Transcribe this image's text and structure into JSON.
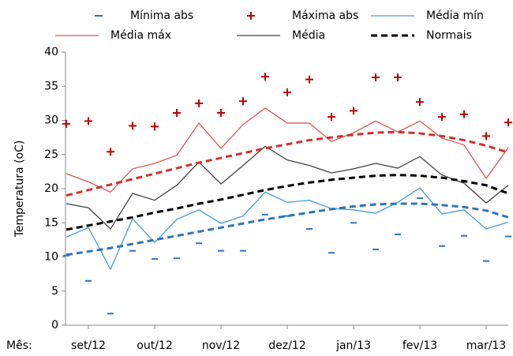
{
  "chart_data": {
    "type": "line",
    "y_label": "Temperatura (oC)",
    "x_label": "Mês:",
    "x": [
      0,
      1,
      2,
      3,
      4,
      5,
      6,
      7,
      8,
      9,
      10,
      11,
      12,
      13,
      14,
      15,
      16,
      17,
      18,
      19,
      20
    ],
    "xlim": [
      0,
      20
    ],
    "xticks": [
      {
        "value": 1,
        "label": "set/12"
      },
      {
        "value": 4,
        "label": "out/12"
      },
      {
        "value": 7,
        "label": "nov/12"
      },
      {
        "value": 10,
        "label": "dez/12"
      },
      {
        "value": 13,
        "label": "jan/13"
      },
      {
        "value": 16,
        "label": "fev/13"
      },
      {
        "value": 19,
        "label": "mar/13"
      }
    ],
    "ylim": [
      0,
      40
    ],
    "yticks": [
      0,
      5,
      10,
      15,
      20,
      25,
      30,
      35,
      40
    ],
    "series": [
      {
        "name": "Mínima abs",
        "color": "#2e75b6",
        "marker": "dash",
        "values": [
          10.2,
          6.5,
          1.7,
          10.9,
          9.7,
          9.8,
          12.0,
          10.9,
          10.9,
          16.2,
          16.0,
          14.1,
          10.6,
          15.0,
          11.1,
          13.3,
          18.6,
          11.6,
          13.1,
          9.4,
          13.0
        ]
      },
      {
        "name": "Máxima abs",
        "color": "#c00000",
        "marker": "plus",
        "values": [
          29.5,
          29.9,
          25.4,
          29.2,
          29.1,
          31.1,
          32.5,
          31.1,
          32.8,
          36.4,
          34.1,
          36.0,
          30.5,
          31.4,
          36.3,
          36.3,
          32.7,
          30.5,
          30.9,
          27.7,
          29.7
        ]
      },
      {
        "name": "Média mín",
        "color": "#4a9bd4",
        "style": "solid",
        "values": [
          12.9,
          14.3,
          8.2,
          15.6,
          12.1,
          15.5,
          16.9,
          14.9,
          16.0,
          19.5,
          18.0,
          18.3,
          17.1,
          16.9,
          16.4,
          18.0,
          20.1,
          16.3,
          16.9,
          14.1,
          15.1
        ]
      },
      {
        "name": "Média máx",
        "color": "#e05555",
        "style": "solid",
        "values": [
          22.2,
          21.0,
          19.5,
          22.9,
          23.7,
          24.9,
          29.6,
          25.9,
          29.4,
          31.8,
          29.6,
          29.6,
          26.9,
          28.2,
          29.9,
          28.3,
          29.9,
          27.4,
          26.4,
          21.5,
          26.0
        ]
      },
      {
        "name": "Média",
        "color": "#404040",
        "style": "solid",
        "values": [
          17.8,
          17.2,
          14.1,
          19.3,
          18.3,
          20.5,
          23.9,
          20.7,
          23.4,
          26.2,
          24.2,
          23.4,
          22.3,
          22.9,
          23.7,
          23.0,
          24.7,
          22.0,
          20.8,
          17.9,
          20.5
        ]
      },
      {
        "name": "Normais",
        "color": "#000000",
        "style": "dashed",
        "values": [
          14.0,
          14.6,
          15.2,
          15.8,
          16.5,
          17.1,
          17.8,
          18.4,
          19.1,
          19.8,
          20.4,
          20.9,
          21.3,
          21.6,
          21.9,
          22.0,
          21.9,
          21.6,
          21.1,
          20.5,
          19.3
        ]
      },
      {
        "color": "#d0312d",
        "style": "dashed",
        "values": [
          19.0,
          19.8,
          20.6,
          21.4,
          22.2,
          23.0,
          23.8,
          24.5,
          25.2,
          25.9,
          26.5,
          27.1,
          27.5,
          27.9,
          28.2,
          28.3,
          28.1,
          27.7,
          27.1,
          26.3,
          25.3
        ]
      },
      {
        "color": "#2e75b6",
        "style": "dashed",
        "values": [
          10.3,
          10.8,
          11.3,
          11.9,
          12.5,
          13.1,
          13.7,
          14.3,
          14.9,
          15.5,
          16.0,
          16.5,
          17.0,
          17.4,
          17.7,
          17.8,
          17.8,
          17.6,
          17.3,
          16.8,
          15.8
        ]
      }
    ]
  }
}
